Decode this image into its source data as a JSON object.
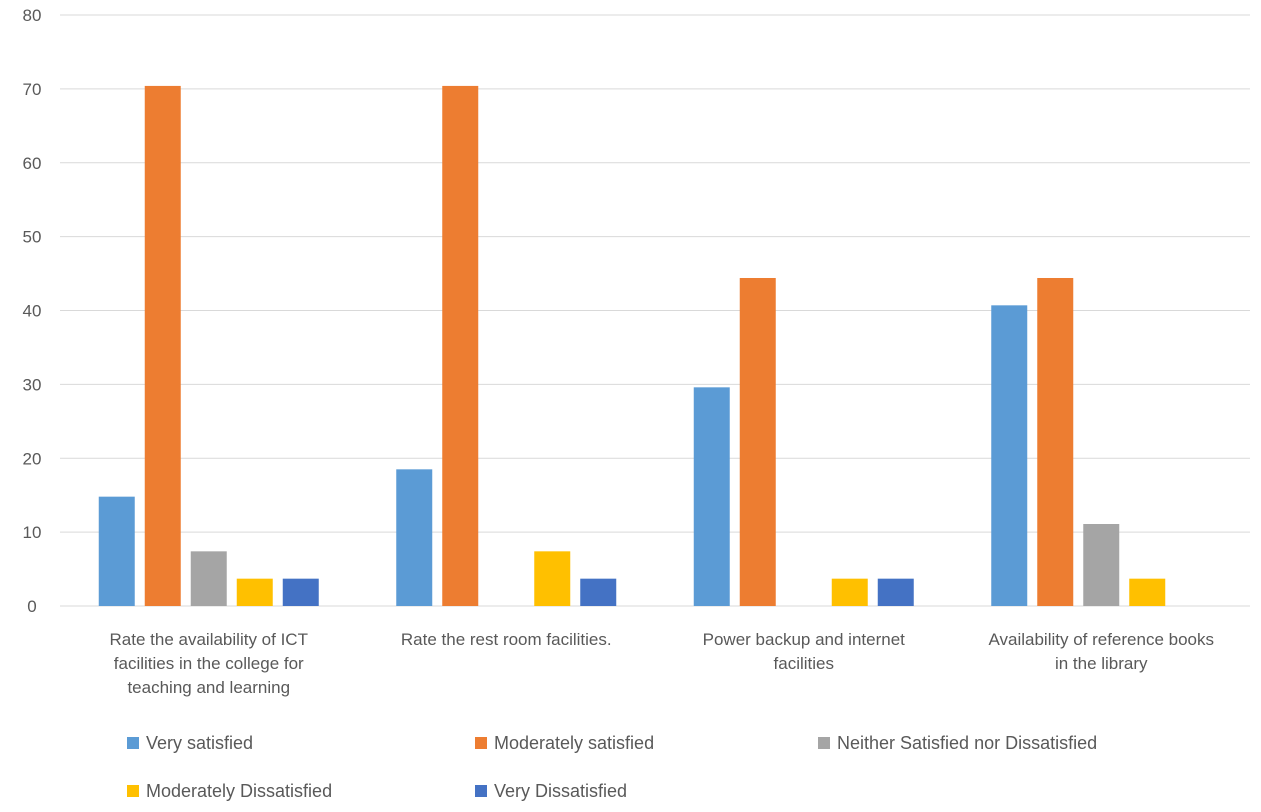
{
  "chart_data": {
    "type": "bar",
    "title": "",
    "xlabel": "",
    "ylabel": "",
    "ylim": [
      0,
      80
    ],
    "yticks": [
      0,
      10,
      20,
      30,
      40,
      50,
      60,
      70,
      80
    ],
    "grid": true,
    "legend_position": "bottom",
    "categories": [
      [
        "Rate the availability of ICT",
        "facilities in the college for",
        "teaching and learning"
      ],
      [
        "Rate the rest room facilities."
      ],
      [
        "Power backup and internet",
        "facilities"
      ],
      [
        "Availability of reference books",
        "in the library"
      ]
    ],
    "series": [
      {
        "name": "Very satisfied",
        "color": "#5b9bd5",
        "values": [
          14.8,
          18.5,
          29.6,
          40.7
        ]
      },
      {
        "name": "Moderately satisfied",
        "color": "#ed7d31",
        "values": [
          70.4,
          70.4,
          44.4,
          44.4
        ]
      },
      {
        "name": "Neither Satisfied nor Dissatisfied",
        "color": "#a5a5a5",
        "values": [
          7.4,
          0,
          0,
          11.1
        ]
      },
      {
        "name": "Moderately Dissatisfied",
        "color": "#ffc000",
        "values": [
          3.7,
          7.4,
          3.7,
          3.7
        ]
      },
      {
        "name": "Very Dissatisfied",
        "color": "#4472c4",
        "values": [
          3.7,
          3.7,
          3.7,
          0
        ]
      }
    ]
  }
}
